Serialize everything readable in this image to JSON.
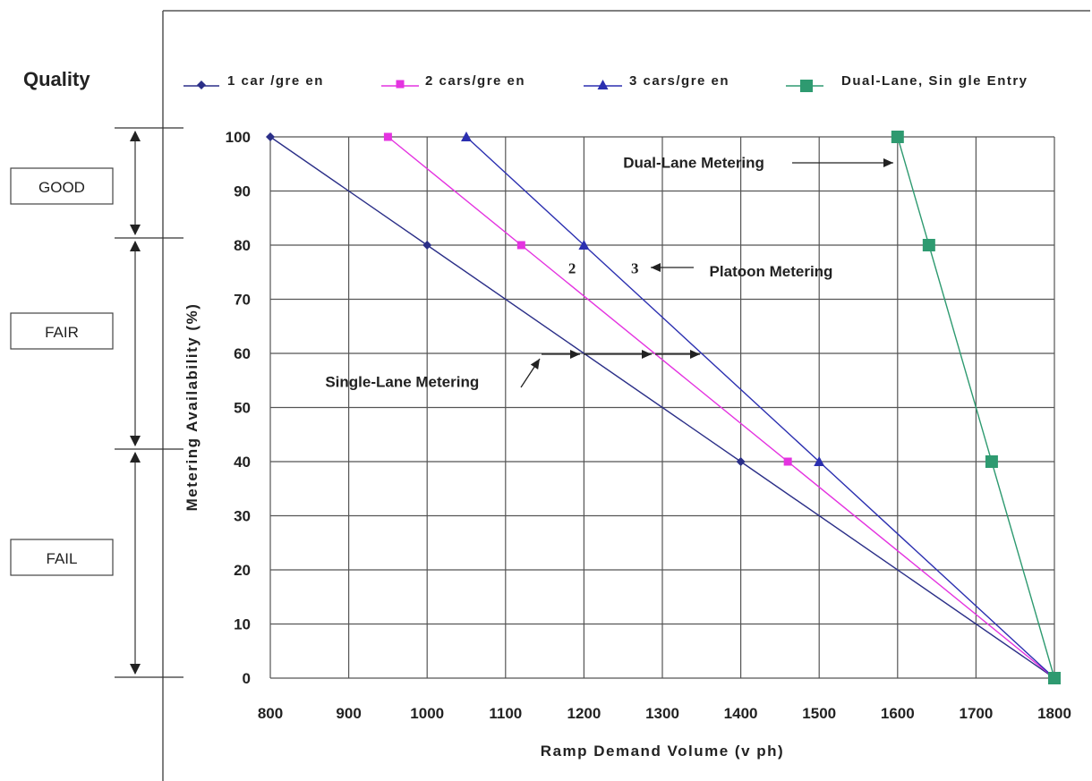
{
  "chart_data": {
    "type": "line",
    "xlabel": "Ramp Demand Volume (v ph)",
    "ylabel": "Metering Availability (%)",
    "xlim": [
      800,
      1800
    ],
    "ylim": [
      0,
      100
    ],
    "x_ticks": [
      800,
      900,
      1000,
      1100,
      1200,
      1300,
      1400,
      1500,
      1600,
      1700,
      1800
    ],
    "y_ticks": [
      0,
      10,
      20,
      30,
      40,
      50,
      60,
      70,
      80,
      90,
      100
    ],
    "grid": true,
    "legend_position": "top",
    "series": [
      {
        "name": "1 car /gre en",
        "marker": "diamond",
        "color": "#2b2f88",
        "points": [
          [
            800,
            100
          ],
          [
            1000,
            80
          ],
          [
            1400,
            40
          ],
          [
            1800,
            0
          ]
        ]
      },
      {
        "name": "2 cars/gre en",
        "marker": "square-small",
        "color": "#e433e0",
        "points": [
          [
            950,
            100
          ],
          [
            1120,
            80
          ],
          [
            1460,
            40
          ],
          [
            1800,
            0
          ]
        ]
      },
      {
        "name": "3 cars/gre en",
        "marker": "triangle",
        "color": "#2b2fb0",
        "points": [
          [
            1050,
            100
          ],
          [
            1200,
            80
          ],
          [
            1500,
            40
          ],
          [
            1800,
            0
          ]
        ]
      },
      {
        "name": "Dual-Lane, Sin gle Entry",
        "marker": "square-large",
        "color": "#2e9a70",
        "points": [
          [
            1600,
            100
          ],
          [
            1640,
            80
          ],
          [
            1720,
            40
          ],
          [
            1800,
            0
          ]
        ]
      }
    ],
    "annotations": [
      {
        "text": "Dual-Lane Metering",
        "x": 1250,
        "y": 95.3
      },
      {
        "text": "2",
        "x": 1180,
        "y": 75.8
      },
      {
        "text": "3",
        "x": 1260,
        "y": 75.8
      },
      {
        "text": "Platoon Metering",
        "x": 1360,
        "y": 75.2
      },
      {
        "text": "Single-Lane Metering",
        "x": 870,
        "y": 54.8
      }
    ],
    "quality": {
      "title": "Quality",
      "levels": [
        {
          "label": "GOOD",
          "from": 100,
          "to": 80
        },
        {
          "label": "FAIR",
          "from": 80,
          "to": 40
        },
        {
          "label": "FAIL",
          "from": 40,
          "to": 0
        }
      ]
    }
  },
  "colors": {
    "grid": "#555555",
    "axis": "#333333",
    "series1": "#2b2f88",
    "series2": "#e433e0",
    "series3": "#2b2fb0",
    "series4": "#2e9a70"
  }
}
